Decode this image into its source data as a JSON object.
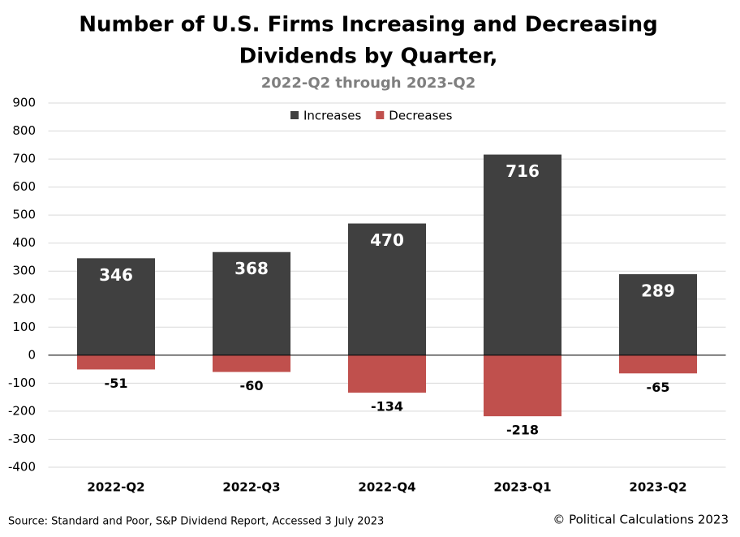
{
  "chart_data": {
    "type": "bar",
    "stacked": true,
    "title": [
      "Number of U.S. Firms Increasing and Decreasing",
      "Dividends by Quarter,"
    ],
    "subtitle": "2022-Q2 through 2023-Q2",
    "categories": [
      "2022-Q2",
      "2022-Q3",
      "2022-Q4",
      "2023-Q1",
      "2023-Q2"
    ],
    "series": [
      {
        "name": "Increases",
        "color": "#404040",
        "values": [
          346,
          368,
          470,
          716,
          289
        ]
      },
      {
        "name": "Decreases",
        "color": "#c0504d",
        "values": [
          -51,
          -60,
          -134,
          -218,
          -65
        ]
      }
    ],
    "ylim": [
      -400,
      900
    ],
    "yticks": [
      -400,
      -300,
      -200,
      -100,
      0,
      100,
      200,
      300,
      400,
      500,
      600,
      700,
      800,
      900
    ],
    "grid": true,
    "legend": "top",
    "source": "Source: Standard and Poor, S&P Dividend Report, Accessed 3 July 2023",
    "copyright": "© Political Calculations 2023"
  }
}
